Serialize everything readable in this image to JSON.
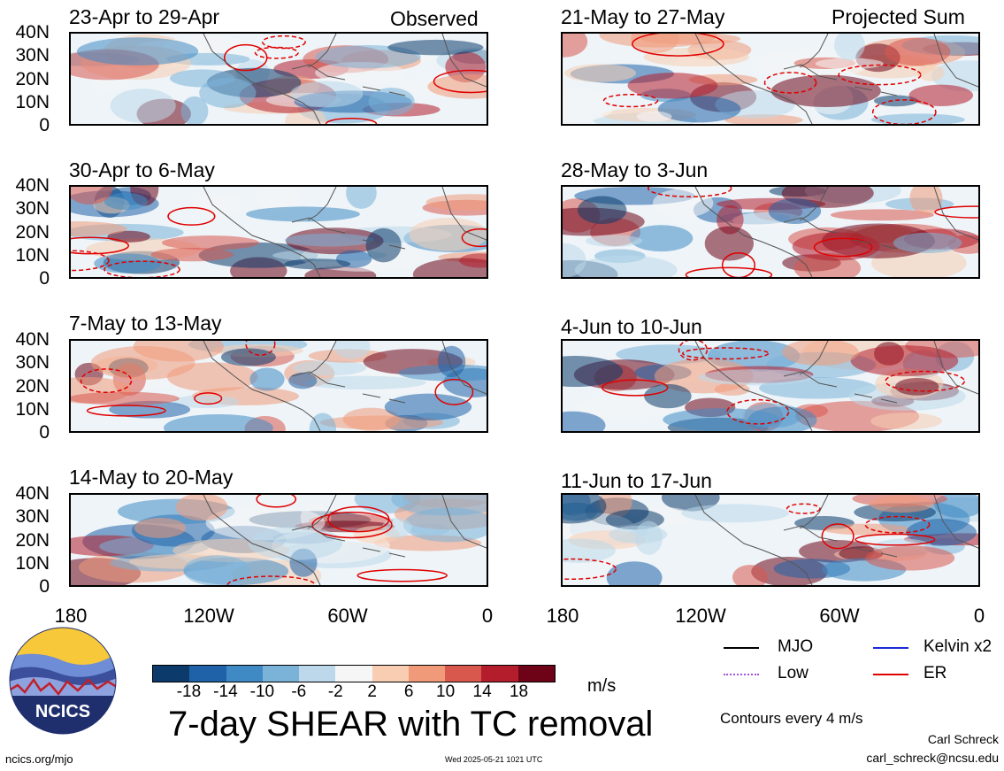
{
  "panels": {
    "observed_label": "Observed",
    "projected_label": "Projected Sum",
    "left": [
      "23-Apr to 29-Apr",
      "30-Apr to 6-May",
      "7-May to 13-May",
      "14-May to 20-May"
    ],
    "right": [
      "21-May to 27-May",
      "28-May to 3-Jun",
      "4-Jun to 10-Jun",
      "11-Jun to 17-Jun"
    ]
  },
  "yaxis": [
    "40N",
    "30N",
    "20N",
    "10N",
    "0"
  ],
  "xaxis": [
    "180",
    "120W",
    "60W",
    "0"
  ],
  "legend": {
    "mjo": "MJO",
    "kelvin": "Kelvin x2",
    "low": "Low",
    "er": "ER",
    "colors": {
      "mjo": "#000000",
      "kelvin": "#1a2ad8",
      "low": "#a452e0",
      "er": "#e00000"
    }
  },
  "colorbar": {
    "ticks": [
      "-18",
      "-14",
      "-10",
      "-6",
      "-2",
      "2",
      "6",
      "10",
      "14",
      "18"
    ],
    "unit": "m/s",
    "colors": [
      "#0b3a6b",
      "#1f62a8",
      "#3f8ac4",
      "#7ab2d8",
      "#bcd8ea",
      "#f6f6f6",
      "#f8cdb2",
      "#f09a7a",
      "#d9584e",
      "#b41e2c",
      "#6e0318"
    ]
  },
  "title": "7-day SHEAR with TC removal",
  "contour_note": "Contours every 4 m/s",
  "credit": {
    "name": "Carl Schreck",
    "email": "carl_schreck@ncsu.edu"
  },
  "footer": {
    "url": "ncics.org/mjo",
    "timestamp": "Wed 2025-05-21 1021 UTC"
  },
  "logo": {
    "text": "NCICS"
  }
}
